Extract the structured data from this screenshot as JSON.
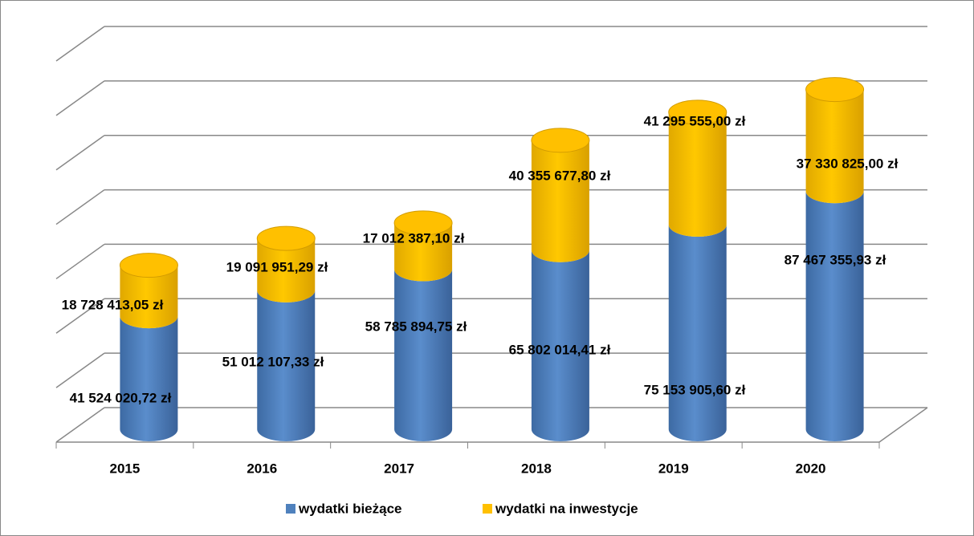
{
  "chart_data": {
    "type": "bar3d_stacked_cylinder",
    "categories": [
      "2015",
      "2016",
      "2017",
      "2018",
      "2019",
      "2020"
    ],
    "series": [
      {
        "name": "wydatki bieżące",
        "color": "#4f81bd",
        "values": [
          41524020.72,
          51012107.33,
          58785894.75,
          65802014.41,
          75153905.6,
          87467355.93
        ],
        "value_labels": [
          "41 524 020,72 zł",
          "51 012 107,33 zł",
          "58 785 894,75 zł",
          "65 802 014,41 zł",
          "75 153 905,60 zł",
          "87 467 355,93 zł"
        ]
      },
      {
        "name": "wydatki na inwestycje",
        "color": "#ffc000",
        "values": [
          18728413.05,
          19091951.29,
          17012387.1,
          40355677.8,
          41295555.0,
          37330825.0
        ],
        "value_labels": [
          "18 728 413,05 zł",
          "19 091 951,29 zł",
          "17 012 387,10 zł",
          "40 355 677,80 zł",
          "41 295 555,00 zł",
          "37 330 825,00 zł"
        ]
      }
    ],
    "ylim": [
      0,
      140000000
    ],
    "yticks": [
      0,
      20000000,
      40000000,
      60000000,
      80000000,
      100000000,
      120000000,
      140000000
    ],
    "grid": true,
    "legend": "bottom"
  }
}
